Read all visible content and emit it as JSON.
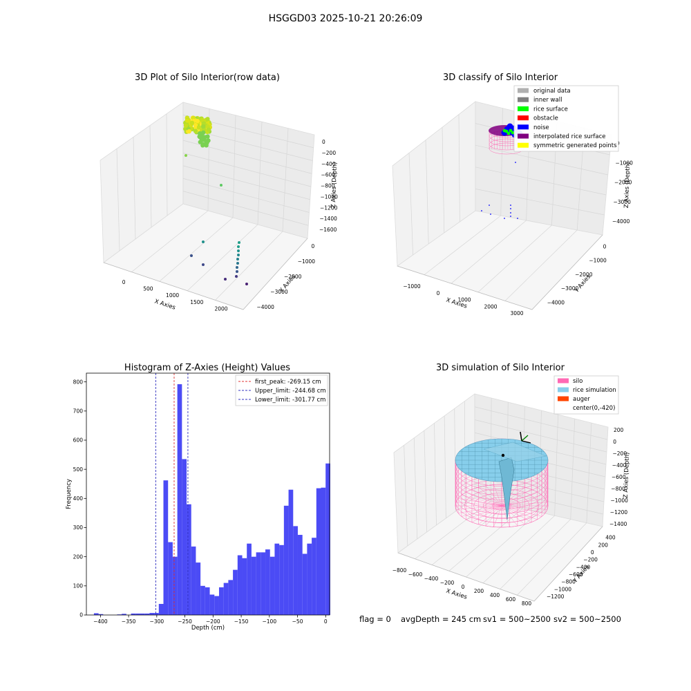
{
  "page": {
    "title": "HSGGD03 2025-10-21 20:26:09",
    "footer": {
      "flag": "flag = 0",
      "avg_depth": "avgDepth = 245 cm",
      "sv1": "sv1 = 500~2500",
      "sv2": "sv2 = 500~2500"
    }
  },
  "colors": {
    "hist_bar": "#4b4bf5",
    "first_peak": "#e03030",
    "limits": "#3030c0",
    "silo": "#ff69b4",
    "rice": "#87ceeb",
    "auger": "#ff4500"
  },
  "chart_data": [
    {
      "type": "scatter3d",
      "title": "3D Plot of Silo Interior(row data)",
      "xlabel": "X Axies",
      "ylabel": "Y Axies",
      "zlabel": "Z Axies (Depth)",
      "x_ticks": [
        "0",
        "500",
        "1000",
        "1500",
        "2000"
      ],
      "y_ticks": [
        "0",
        "−1000",
        "−2000",
        "−3000",
        "−4000"
      ],
      "z_ticks": [
        "0",
        "−200",
        "−400",
        "−600",
        "−800",
        "−1000",
        "−1200",
        "−1400",
        "−1600"
      ],
      "colormap": "viridis"
    },
    {
      "type": "scatter3d",
      "title": "3D classify of Silo Interior",
      "xlabel": "X Axies",
      "ylabel": "Y Axies",
      "zlabel": "Z Axies (Depth)",
      "x_ticks": [
        "−1000",
        "0",
        "1000",
        "2000",
        "3000"
      ],
      "y_ticks": [
        "0",
        "−1000",
        "−2000",
        "−3000",
        "−4000"
      ],
      "z_ticks": [
        "0",
        "−1000",
        "−2000",
        "−3000",
        "−4000"
      ],
      "legend": [
        {
          "label": "original data",
          "color": "#b0b0b0"
        },
        {
          "label": "inner wall",
          "color": "#808080"
        },
        {
          "label": "rice surface",
          "color": "#00ff00"
        },
        {
          "label": "obstacle",
          "color": "#ff0000"
        },
        {
          "label": "noise",
          "color": "#0000ff"
        },
        {
          "label": "interpolated rice surface",
          "color": "#800080"
        },
        {
          "label": "symmetric generated points",
          "color": "#ffff00"
        }
      ]
    },
    {
      "type": "bar",
      "title": "Histogram of Z-Axies (Height) Values",
      "xlabel": "Depth (cm)",
      "ylabel": "Frequency",
      "xlim": [
        -425,
        7
      ],
      "ylim": [
        0,
        830
      ],
      "x_ticks": [
        -400,
        -350,
        -300,
        -250,
        -200,
        -150,
        -100,
        -50,
        0
      ],
      "x_tick_labels": [
        "−400",
        "−350",
        "−300",
        "−250",
        "−200",
        "−150",
        "−100",
        "−50",
        "0"
      ],
      "y_ticks": [
        0,
        100,
        200,
        300,
        400,
        500,
        600,
        700,
        800
      ],
      "y_tick_labels": [
        "0",
        "100",
        "200",
        "300",
        "400",
        "500",
        "600",
        "700",
        "800"
      ],
      "bin_start": -411.6,
      "bin_width": 8.23,
      "values": [
        6,
        3,
        0,
        0,
        0,
        2,
        4,
        0,
        5,
        5,
        5,
        5,
        7,
        7,
        38,
        462,
        250,
        200,
        792,
        535,
        380,
        235,
        180,
        100,
        95,
        70,
        65,
        95,
        110,
        120,
        155,
        205,
        195,
        245,
        200,
        215,
        215,
        225,
        200,
        245,
        240,
        375,
        430,
        305,
        275,
        210,
        245,
        265,
        435,
        437,
        520
      ],
      "lines": [
        {
          "label": "first_peak: -269.15 cm",
          "x": -269.15,
          "color": "#e03030"
        },
        {
          "label": "Upper_limit: -244.68 cm",
          "x": -244.68,
          "color": "#3030c0"
        },
        {
          "label": "Lower_limit: -301.77 cm",
          "x": -301.77,
          "color": "#3030c0"
        }
      ]
    },
    {
      "type": "surface3d",
      "title": "3D simulation of Silo Interior",
      "xlabel": "X Axies",
      "ylabel": "Y Axies",
      "zlabel": "Z Axies (Depth)",
      "x_ticks": [
        "−800",
        "−600",
        "−400",
        "−200",
        "0",
        "200",
        "400",
        "600",
        "800"
      ],
      "y_ticks": [
        "400",
        "200",
        "0",
        "−200",
        "−400",
        "−600",
        "−800",
        "−1000",
        "−1200"
      ],
      "z_ticks": [
        "200",
        "0",
        "−200",
        "−400",
        "−600",
        "−800",
        "−1000",
        "−1200",
        "−1400"
      ],
      "legend": [
        {
          "label": "silo",
          "color": "#ff69b4"
        },
        {
          "label": "rice simulation",
          "color": "#87ceeb"
        },
        {
          "label": "auger",
          "color": "#ff4500"
        },
        {
          "label": "center(0,-420)",
          "color": ""
        }
      ]
    }
  ]
}
